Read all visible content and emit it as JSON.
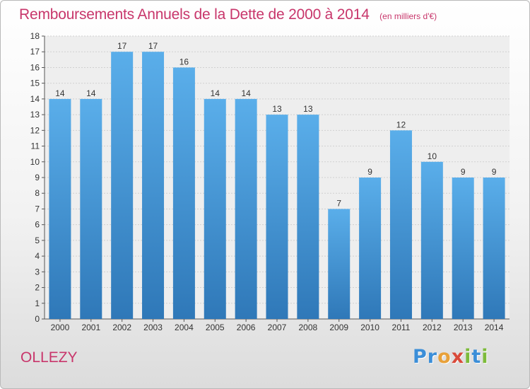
{
  "title": "Remboursements Annuels de la Dette de 2000 à 2014",
  "subtitle": "(en milliers d'€)",
  "commune": "OLLEZY",
  "logo": {
    "text": "Proxiti",
    "letters": [
      {
        "char": "P",
        "color": "#3b8ed8"
      },
      {
        "char": "r",
        "color": "#3b8ed8"
      },
      {
        "char": "o",
        "color": "#e8a13a"
      },
      {
        "char": "x",
        "color": "#d94a3a"
      },
      {
        "char": "i",
        "color": "#7dbb3a"
      },
      {
        "char": "t",
        "color": "#3b8ed8"
      },
      {
        "char": "i",
        "color": "#7dbb3a"
      }
    ]
  },
  "colors": {
    "accent": "#c8366b",
    "bar_top": "#5aaeea",
    "bar_bottom": "#2f78b8",
    "label": "#333333"
  },
  "chart_data": {
    "type": "bar",
    "categories": [
      "2000",
      "2001",
      "2002",
      "2003",
      "2004",
      "2005",
      "2006",
      "2007",
      "2008",
      "2009",
      "2010",
      "2011",
      "2012",
      "2013",
      "2014"
    ],
    "values": [
      14,
      14,
      17,
      17,
      16,
      14,
      14,
      13,
      13,
      7,
      9,
      12,
      10,
      9,
      9
    ],
    "ylim": [
      0,
      18
    ],
    "yticks": [
      0,
      1,
      2,
      3,
      4,
      5,
      6,
      7,
      8,
      9,
      10,
      11,
      12,
      13,
      14,
      15,
      16,
      17,
      18
    ],
    "grid": true
  }
}
